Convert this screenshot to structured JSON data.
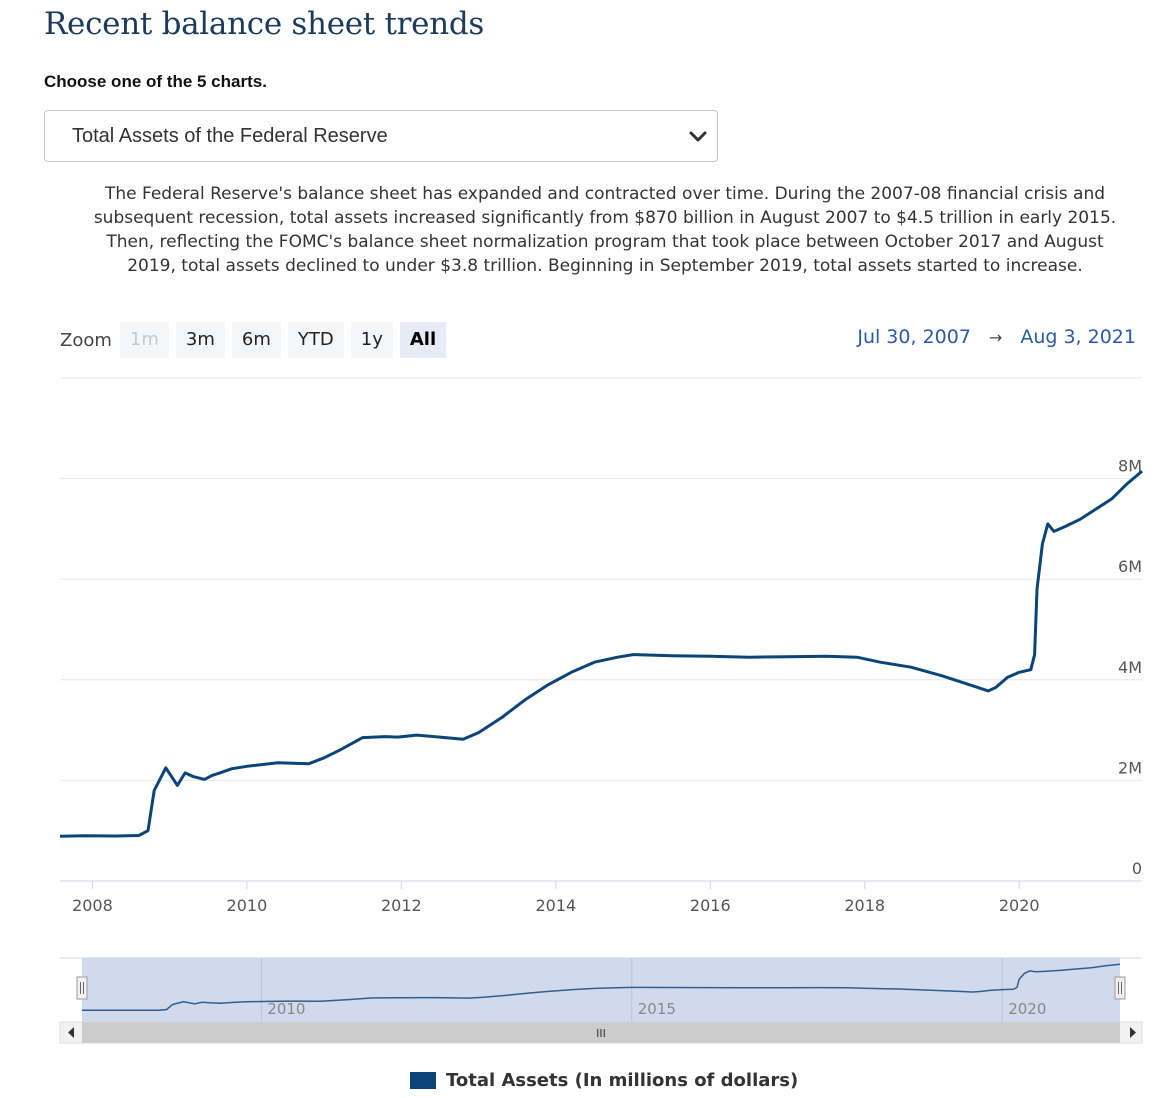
{
  "header": {
    "title": "Recent balance sheet trends",
    "choose_label": "Choose one of the 5 charts."
  },
  "selector": {
    "selected": "Total Assets of the Federal Reserve"
  },
  "description": "The Federal Reserve's balance sheet has expanded and contracted over time. During the 2007-08 financial crisis and subsequent recession, total assets increased significantly from $870 billion in August 2007 to $4.5 trillion in early 2015. Then, reflecting the FOMC's balance sheet normalization program that took place between October 2017 and August 2019, total assets declined to under $3.8 trillion. Beginning in September 2019, total assets started to increase.",
  "zoom": {
    "label": "Zoom",
    "buttons": [
      "1m",
      "3m",
      "6m",
      "YTD",
      "1y",
      "All"
    ],
    "active": "All",
    "disabled": [
      "1m"
    ]
  },
  "range": {
    "from": "Jul 30, 2007",
    "arrow": "→",
    "to": "Aug 3, 2021"
  },
  "colors": {
    "series": "#0a4479",
    "grid": "#e6e6e6",
    "navigator_fill": "#ccd6eb",
    "accent_text": "#2b5aa6"
  },
  "chart_data": {
    "type": "line",
    "series": [
      {
        "name": "Total Assets (In millions of dollars)",
        "x": [
          2007.58,
          2007.9,
          2008.3,
          2008.6,
          2008.72,
          2008.8,
          2008.95,
          2009.1,
          2009.2,
          2009.3,
          2009.45,
          2009.55,
          2009.65,
          2009.8,
          2010.0,
          2010.4,
          2010.8,
          2011.0,
          2011.2,
          2011.5,
          2011.8,
          2011.95,
          2012.2,
          2012.5,
          2012.8,
          2013.0,
          2013.3,
          2013.6,
          2013.9,
          2014.2,
          2014.5,
          2014.8,
          2015.0,
          2015.5,
          2016.0,
          2016.5,
          2017.0,
          2017.5,
          2017.9,
          2018.2,
          2018.6,
          2019.0,
          2019.3,
          2019.6,
          2019.7,
          2019.85,
          2020.0,
          2020.15,
          2020.2,
          2020.23,
          2020.3,
          2020.37,
          2020.45,
          2020.6,
          2020.8,
          2021.0,
          2021.2,
          2021.4,
          2021.59
        ],
        "values": [
          890000,
          900000,
          895000,
          905000,
          1000000,
          1800000,
          2250000,
          1900000,
          2150000,
          2080000,
          2020000,
          2100000,
          2150000,
          2230000,
          2280000,
          2350000,
          2330000,
          2450000,
          2600000,
          2850000,
          2870000,
          2860000,
          2900000,
          2860000,
          2820000,
          2950000,
          3250000,
          3600000,
          3900000,
          4150000,
          4350000,
          4450000,
          4500000,
          4480000,
          4470000,
          4450000,
          4460000,
          4470000,
          4450000,
          4350000,
          4250000,
          4080000,
          3930000,
          3780000,
          3850000,
          4050000,
          4150000,
          4200000,
          4500000,
          5800000,
          6700000,
          7100000,
          6950000,
          7050000,
          7200000,
          7400000,
          7600000,
          7900000,
          8150000
        ]
      }
    ],
    "y_ticks": [
      "0",
      "2M",
      "4M",
      "6M",
      "8M"
    ],
    "y_tick_values": [
      0,
      2000000,
      4000000,
      6000000,
      8000000
    ],
    "ylim": [
      0,
      10000000
    ],
    "x_ticks": [
      "2008",
      "2010",
      "2012",
      "2014",
      "2016",
      "2018",
      "2020"
    ],
    "x_tick_values": [
      2008,
      2010,
      2012,
      2014,
      2016,
      2018,
      2020
    ],
    "xlim": [
      2007.58,
      2021.59
    ],
    "navigator_ticks": [
      "2010",
      "2015",
      "2020"
    ],
    "navigator_tick_values": [
      2010,
      2015,
      2020
    ],
    "navigator_scroll_label": "III",
    "legend": "bottom-center",
    "grid": true
  }
}
